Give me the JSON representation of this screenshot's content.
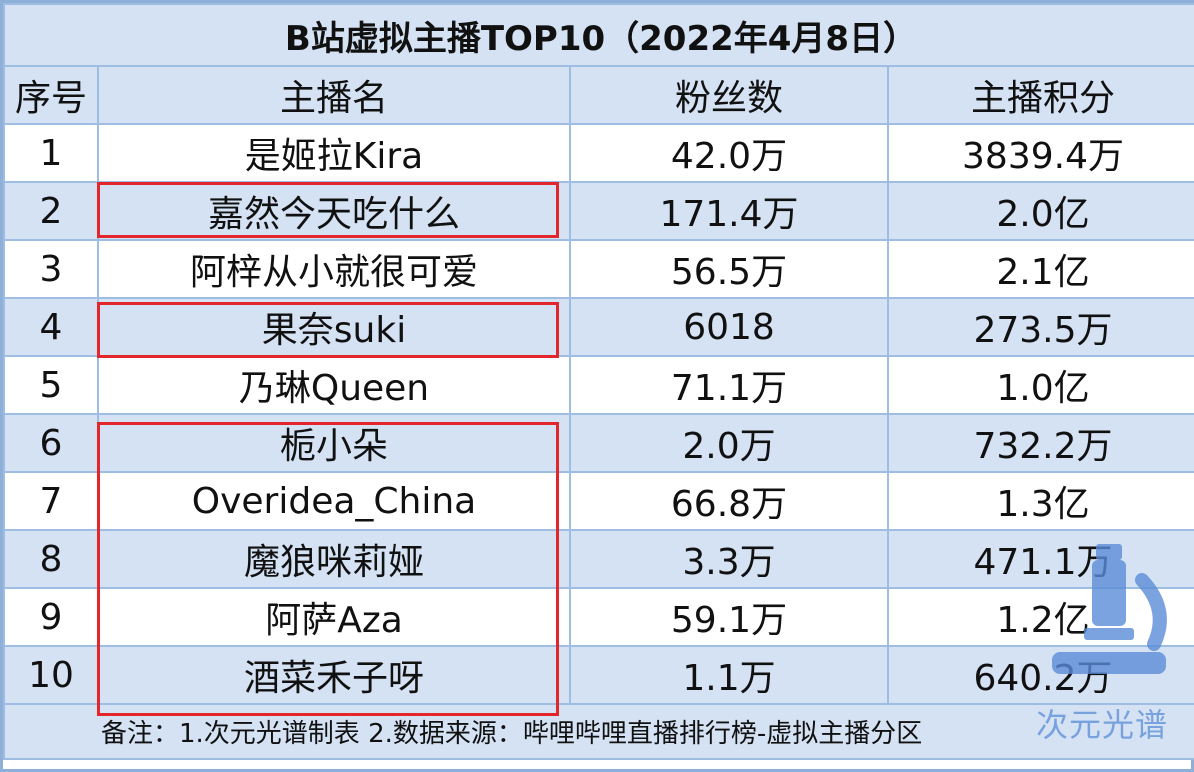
{
  "title": "B站虚拟主播TOP10（2022年4月8日）",
  "headers": {
    "rank": "序号",
    "name": "主播名",
    "fans": "粉丝数",
    "score": "主播积分"
  },
  "rows": [
    {
      "rank": "1",
      "name": "是姬拉Kira",
      "fans": "42.0万",
      "score": "3839.4万"
    },
    {
      "rank": "2",
      "name": "嘉然今天吃什么",
      "fans": "171.4万",
      "score": "2.0亿"
    },
    {
      "rank": "3",
      "name": "阿梓从小就很可爱",
      "fans": "56.5万",
      "score": "2.1亿"
    },
    {
      "rank": "4",
      "name": "果奈suki",
      "fans": "6018",
      "score": "273.5万"
    },
    {
      "rank": "5",
      "name": "乃琳Queen",
      "fans": "71.1万",
      "score": "1.0亿"
    },
    {
      "rank": "6",
      "name": "栀小朵",
      "fans": "2.0万",
      "score": "732.2万"
    },
    {
      "rank": "7",
      "name": "Overidea_China",
      "fans": "66.8万",
      "score": "1.3亿"
    },
    {
      "rank": "8",
      "name": "魔狼咪莉娅",
      "fans": "3.3万",
      "score": "471.1万"
    },
    {
      "rank": "9",
      "name": "阿萨Aza",
      "fans": "59.1万",
      "score": "1.2亿"
    },
    {
      "rank": "10",
      "name": "酒菜禾子呀",
      "fans": "1.1万",
      "score": "640.2万"
    }
  ],
  "note": "备注：1.次元光谱制表 2.数据来源：哔哩哔哩直播排行榜-虚拟主播分区",
  "watermark": {
    "text": "次元光谱",
    "icon": "microscope-icon"
  },
  "colors": {
    "header_fill": "#d4e2f4",
    "border": "#9dbde2",
    "highlight": "#e3262b",
    "watermark": "#5a8cd7"
  }
}
